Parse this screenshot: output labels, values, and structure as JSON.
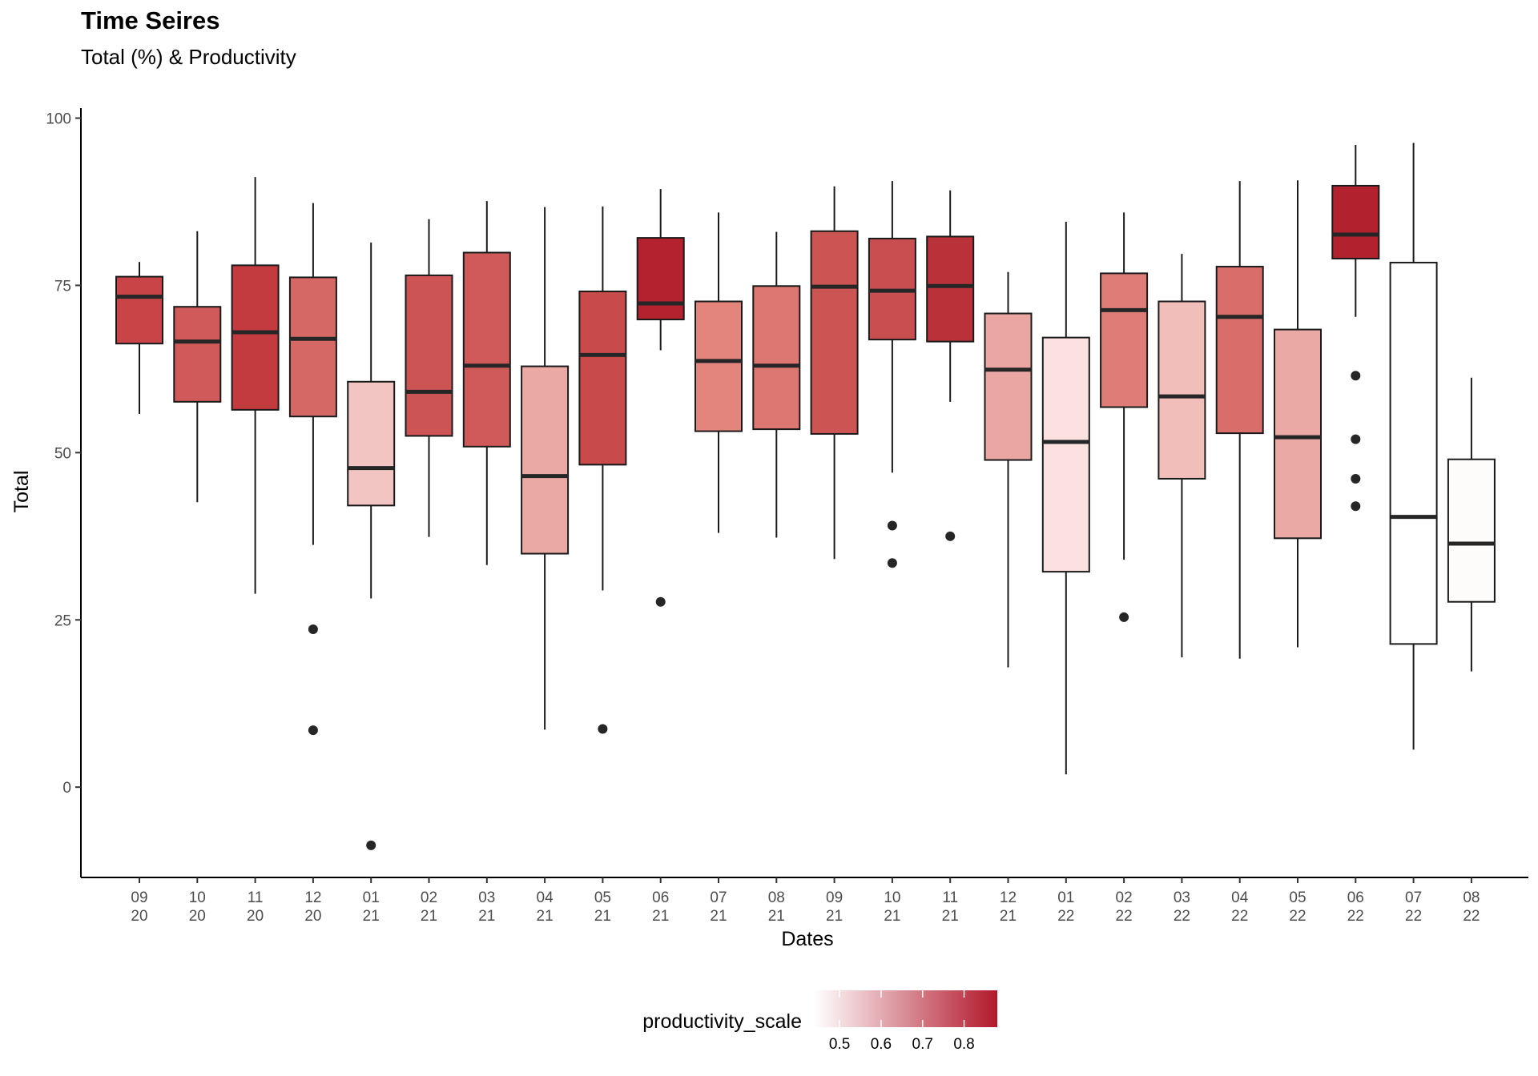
{
  "chart_data": {
    "type": "box",
    "title": "Time Seires",
    "subtitle": "Total (%) & Productivity",
    "xlabel": "Dates",
    "ylabel": "Total",
    "ylim": [
      -13.5,
      101.5
    ],
    "yticks": [
      0,
      25,
      50,
      75,
      100
    ],
    "grid": false,
    "legend": {
      "title": "productivity_scale",
      "position": "bottom",
      "ticks": [
        0.5,
        0.6,
        0.7,
        0.8
      ],
      "range": [
        0.44,
        0.88
      ],
      "low_color": "#ffffff",
      "high_color": "#b2182b"
    },
    "categories": [
      {
        "month": "09",
        "year": "20"
      },
      {
        "month": "10",
        "year": "20"
      },
      {
        "month": "11",
        "year": "20"
      },
      {
        "month": "12",
        "year": "20"
      },
      {
        "month": "01",
        "year": "21"
      },
      {
        "month": "02",
        "year": "21"
      },
      {
        "month": "03",
        "year": "21"
      },
      {
        "month": "04",
        "year": "21"
      },
      {
        "month": "05",
        "year": "21"
      },
      {
        "month": "06",
        "year": "21"
      },
      {
        "month": "07",
        "year": "21"
      },
      {
        "month": "08",
        "year": "21"
      },
      {
        "month": "09",
        "year": "21"
      },
      {
        "month": "10",
        "year": "21"
      },
      {
        "month": "11",
        "year": "21"
      },
      {
        "month": "12",
        "year": "21"
      },
      {
        "month": "01",
        "year": "22"
      },
      {
        "month": "02",
        "year": "22"
      },
      {
        "month": "03",
        "year": "22"
      },
      {
        "month": "04",
        "year": "22"
      },
      {
        "month": "05",
        "year": "22"
      },
      {
        "month": "06",
        "year": "22"
      },
      {
        "month": "07",
        "year": "22"
      },
      {
        "month": "08",
        "year": "22"
      }
    ],
    "boxes": [
      {
        "min": 55.8,
        "q1": 66.3,
        "median": 73.3,
        "q3": 76.3,
        "max": 78.5,
        "outliers": [],
        "color": "#c94447"
      },
      {
        "min": 42.6,
        "q1": 57.6,
        "median": 66.6,
        "q3": 71.8,
        "max": 83.1,
        "outliers": [],
        "color": "#d05a5a"
      },
      {
        "min": 28.9,
        "q1": 56.4,
        "median": 68.0,
        "q3": 78.0,
        "max": 91.2,
        "outliers": [],
        "color": "#c33a3f"
      },
      {
        "min": 36.2,
        "q1": 55.4,
        "median": 67.0,
        "q3": 76.2,
        "max": 87.3,
        "outliers": [
          23.6,
          8.5
        ],
        "color": "#d56865"
      },
      {
        "min": 28.2,
        "q1": 42.1,
        "median": 47.7,
        "q3": 60.6,
        "max": 81.4,
        "outliers": [
          -8.7
        ],
        "color": "#f3c5c2"
      },
      {
        "min": 37.4,
        "q1": 52.5,
        "median": 59.1,
        "q3": 76.5,
        "max": 84.9,
        "outliers": [],
        "color": "#cd5455"
      },
      {
        "min": 33.2,
        "q1": 50.9,
        "median": 63.0,
        "q3": 79.9,
        "max": 87.6,
        "outliers": [],
        "color": "#cf5a59"
      },
      {
        "min": 8.6,
        "q1": 34.9,
        "median": 46.5,
        "q3": 62.9,
        "max": 86.7,
        "outliers": [],
        "color": "#eba9a5"
      },
      {
        "min": 29.4,
        "q1": 48.2,
        "median": 64.6,
        "q3": 74.1,
        "max": 86.8,
        "outliers": [
          8.7
        ],
        "color": "#c94a4b"
      },
      {
        "min": 65.3,
        "q1": 69.9,
        "median": 72.3,
        "q3": 82.1,
        "max": 89.4,
        "outliers": [
          27.7
        ],
        "color": "#b5222f"
      },
      {
        "min": 38.0,
        "q1": 53.2,
        "median": 63.7,
        "q3": 72.6,
        "max": 85.9,
        "outliers": [],
        "color": "#e3847d"
      },
      {
        "min": 37.3,
        "q1": 53.5,
        "median": 63.0,
        "q3": 74.9,
        "max": 83.0,
        "outliers": [],
        "color": "#dc7772"
      },
      {
        "min": 34.1,
        "q1": 52.8,
        "median": 74.8,
        "q3": 83.1,
        "max": 89.8,
        "outliers": [],
        "color": "#cc5553"
      },
      {
        "min": 47.0,
        "q1": 66.9,
        "median": 74.2,
        "q3": 82.0,
        "max": 90.6,
        "outliers": [
          39.1,
          33.5
        ],
        "color": "#c94e4f"
      },
      {
        "min": 57.6,
        "q1": 66.6,
        "median": 74.9,
        "q3": 82.3,
        "max": 89.2,
        "outliers": [
          37.5
        ],
        "color": "#b93239"
      },
      {
        "min": 17.9,
        "q1": 48.9,
        "median": 62.4,
        "q3": 70.8,
        "max": 77.0,
        "outliers": [],
        "color": "#eaa6a2"
      },
      {
        "min": 1.9,
        "q1": 32.2,
        "median": 51.6,
        "q3": 67.2,
        "max": 84.5,
        "outliers": [],
        "color": "#fbe1df"
      },
      {
        "min": 34.0,
        "q1": 56.8,
        "median": 71.3,
        "q3": 76.8,
        "max": 85.9,
        "outliers": [
          25.4
        ],
        "color": "#de7d78"
      },
      {
        "min": 19.4,
        "q1": 46.1,
        "median": 58.4,
        "q3": 72.6,
        "max": 79.7,
        "outliers": [],
        "color": "#f1beba"
      },
      {
        "min": 19.2,
        "q1": 52.9,
        "median": 70.3,
        "q3": 77.8,
        "max": 90.6,
        "outliers": [],
        "color": "#d96d6a"
      },
      {
        "min": 20.9,
        "q1": 37.2,
        "median": 52.3,
        "q3": 68.4,
        "max": 90.7,
        "outliers": [],
        "color": "#eba9a5"
      },
      {
        "min": 70.3,
        "q1": 79.0,
        "median": 82.6,
        "q3": 89.9,
        "max": 96.0,
        "outliers": [
          61.5,
          52.0,
          46.1,
          42.0
        ],
        "color": "#b2222e"
      },
      {
        "min": 5.6,
        "q1": 21.4,
        "median": 40.4,
        "q3": 78.4,
        "max": 96.3,
        "outliers": [],
        "color": "#ffffff"
      },
      {
        "min": 17.3,
        "q1": 27.7,
        "median": 36.4,
        "q3": 49.0,
        "max": 61.2,
        "outliers": [],
        "color": "#fefcfa"
      }
    ]
  }
}
